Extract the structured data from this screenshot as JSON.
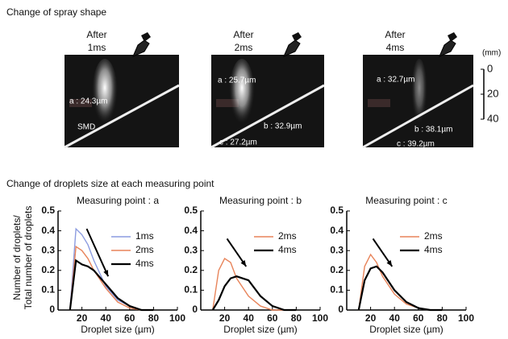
{
  "spray_section": {
    "title": "Change of  spray shape",
    "panels": [
      {
        "label": [
          "After",
          "1ms"
        ],
        "annotations": [
          "a : 24.3µm",
          "SMD"
        ]
      },
      {
        "label": [
          "After",
          "2ms"
        ],
        "annotations": [
          "a : 25.7µm",
          "b : 32.9µm",
          "c : 27.2µm"
        ]
      },
      {
        "label": [
          "After",
          "4ms"
        ],
        "annotations": [
          "a : 32.7µm",
          "b : 38.1µm",
          "c : 39.2µm"
        ]
      }
    ],
    "scale": {
      "unit": "(mm)",
      "lim": [
        0,
        40
      ],
      "ticks": [
        0,
        20,
        40
      ]
    }
  },
  "droplet_section": {
    "title": "Change of  droplets size at each measuring point",
    "ylabel": [
      "Number of droplets/",
      "Total number of droplets"
    ]
  },
  "chart_data": [
    {
      "type": "line",
      "title": "Measuring point : a",
      "xlabel": "Droplet size (µm)",
      "x": [
        10,
        15,
        20,
        25,
        30,
        40,
        50,
        60,
        70,
        80
      ],
      "series": [
        {
          "name": "1ms",
          "color": "#8c9ce0",
          "values": [
            0,
            0.41,
            0.38,
            0.33,
            0.25,
            0.12,
            0.05,
            0.02,
            0,
            0
          ]
        },
        {
          "name": "2ms",
          "color": "#e8845a",
          "values": [
            0,
            0.32,
            0.3,
            0.26,
            0.2,
            0.11,
            0.04,
            0.01,
            0,
            0
          ]
        },
        {
          "name": "4ms",
          "color": "#000000",
          "values": [
            0,
            0.25,
            0.23,
            0.22,
            0.2,
            0.13,
            0.06,
            0.02,
            0,
            0
          ]
        }
      ],
      "xlim": [
        0,
        100
      ],
      "xticks": [
        20,
        40,
        60,
        80,
        100
      ],
      "ylim": [
        0,
        0.5
      ],
      "yticks": [
        0,
        0.1,
        0.2,
        0.3,
        0.4,
        0.5
      ],
      "legend": "upper right"
    },
    {
      "type": "line",
      "title": "Measuring point : b",
      "xlabel": "Droplet size (µm)",
      "x": [
        10,
        15,
        20,
        25,
        30,
        40,
        50,
        60,
        70,
        80
      ],
      "series": [
        {
          "name": "2ms",
          "color": "#e8845a",
          "values": [
            0,
            0.2,
            0.26,
            0.24,
            0.16,
            0.07,
            0.02,
            0,
            0,
            0
          ]
        },
        {
          "name": "4ms",
          "color": "#000000",
          "values": [
            0,
            0.05,
            0.12,
            0.16,
            0.17,
            0.15,
            0.07,
            0.02,
            0,
            0
          ]
        }
      ],
      "xlim": [
        0,
        100
      ],
      "xticks": [
        20,
        40,
        60,
        80,
        100
      ],
      "ylim": [
        0,
        0.5
      ],
      "yticks": [
        0,
        0.1,
        0.2,
        0.3,
        0.4,
        0.5
      ],
      "legend": "upper right"
    },
    {
      "type": "line",
      "title": "Measuring point : c",
      "xlabel": "Droplet size (µm)",
      "x": [
        10,
        15,
        20,
        25,
        30,
        40,
        50,
        60,
        70,
        80
      ],
      "series": [
        {
          "name": "2ms",
          "color": "#e8845a",
          "values": [
            0,
            0.22,
            0.28,
            0.24,
            0.17,
            0.08,
            0.03,
            0.01,
            0,
            0
          ]
        },
        {
          "name": "4ms",
          "color": "#000000",
          "values": [
            0,
            0.15,
            0.21,
            0.22,
            0.19,
            0.1,
            0.04,
            0.01,
            0,
            0
          ]
        }
      ],
      "xlim": [
        0,
        100
      ],
      "xticks": [
        20,
        40,
        60,
        80,
        100
      ],
      "ylim": [
        0,
        0.5
      ],
      "yticks": [
        0,
        0.1,
        0.2,
        0.3,
        0.4,
        0.5
      ],
      "legend": "upper right"
    }
  ]
}
